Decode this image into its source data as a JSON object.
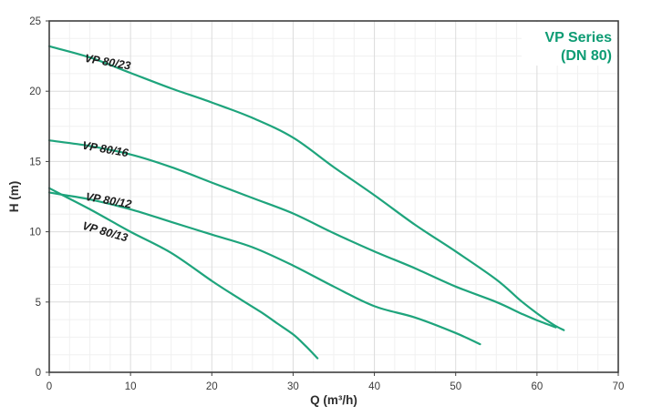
{
  "title": {
    "line1": "VP Series",
    "line2": "(DN 80)"
  },
  "colors": {
    "curve": "#1ea47c",
    "title": "#0e9c74",
    "grid_minor": "#f0f0f0",
    "grid_major": "#dcdcdc",
    "frame": "#3f3f3f",
    "tick_text": "#3b3b3b",
    "curve_label": "#1c1c1c",
    "background": "#ffffff"
  },
  "chart_data": {
    "type": "line",
    "title": "VP Series (DN 80)",
    "xlabel": "Q (m³/h)",
    "ylabel": "H (m)",
    "xlim": [
      0,
      70
    ],
    "ylim": [
      0,
      25
    ],
    "x_ticks": [
      0,
      10,
      20,
      30,
      40,
      50,
      60,
      70
    ],
    "y_ticks": [
      0,
      5,
      10,
      15,
      20,
      25
    ],
    "x_minor_step": 2.5,
    "y_minor_step": 1.25,
    "grid": true,
    "legend_position": "inline-curve-labels",
    "series": [
      {
        "name": "VP 80/23",
        "points": [
          [
            0,
            23.2
          ],
          [
            5,
            22.4
          ],
          [
            10,
            21.3
          ],
          [
            15,
            20.2
          ],
          [
            20,
            19.2
          ],
          [
            25,
            18.1
          ],
          [
            30,
            16.7
          ],
          [
            35,
            14.6
          ],
          [
            40,
            12.6
          ],
          [
            45,
            10.5
          ],
          [
            50,
            8.6
          ],
          [
            55,
            6.6
          ],
          [
            58,
            5.1
          ],
          [
            60,
            4.2
          ],
          [
            62,
            3.4
          ],
          [
            63.3,
            3.0
          ]
        ],
        "label_at": {
          "x": 4.3,
          "y": 22.1,
          "rot": 10
        }
      },
      {
        "name": "VP 80/16",
        "points": [
          [
            0,
            16.5
          ],
          [
            5,
            16.1
          ],
          [
            10,
            15.5
          ],
          [
            15,
            14.6
          ],
          [
            20,
            13.5
          ],
          [
            25,
            12.4
          ],
          [
            30,
            11.3
          ],
          [
            35,
            9.9
          ],
          [
            40,
            8.6
          ],
          [
            45,
            7.4
          ],
          [
            50,
            6.1
          ],
          [
            55,
            5.0
          ],
          [
            58,
            4.2
          ],
          [
            60,
            3.7
          ],
          [
            62.3,
            3.2
          ]
        ],
        "label_at": {
          "x": 4.0,
          "y": 15.9,
          "rot": 10
        }
      },
      {
        "name": "VP 80/12",
        "points": [
          [
            0,
            12.8
          ],
          [
            2,
            12.6
          ],
          [
            5,
            12.3
          ],
          [
            10,
            11.6
          ],
          [
            15,
            10.7
          ],
          [
            20,
            9.8
          ],
          [
            25,
            8.9
          ],
          [
            30,
            7.6
          ],
          [
            35,
            6.1
          ],
          [
            40,
            4.7
          ],
          [
            45,
            3.9
          ],
          [
            50,
            2.8
          ],
          [
            53,
            2.0
          ]
        ],
        "label_at": {
          "x": 4.4,
          "y": 12.25,
          "rot": 10
        }
      },
      {
        "name": "VP 80/13",
        "points": [
          [
            0,
            13.1
          ],
          [
            2,
            12.5
          ],
          [
            5,
            11.6
          ],
          [
            10,
            10.0
          ],
          [
            15,
            8.5
          ],
          [
            20,
            6.5
          ],
          [
            23.5,
            5.2
          ],
          [
            26,
            4.3
          ],
          [
            28,
            3.5
          ],
          [
            30,
            2.7
          ],
          [
            31.5,
            1.9
          ],
          [
            33,
            1.0
          ]
        ],
        "label_at": {
          "x": 4.0,
          "y": 10.2,
          "rot": 16
        }
      }
    ]
  }
}
